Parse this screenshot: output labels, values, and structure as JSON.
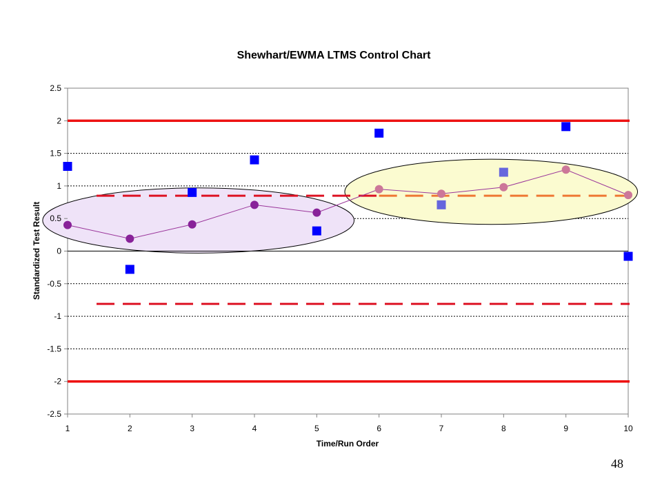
{
  "slide": {
    "page_number": "48"
  },
  "chart_data": {
    "type": "scatter",
    "title": "Shewhart/EWMA LTMS Control Chart",
    "xlabel": "Time/Run Order",
    "ylabel": "Standardized Test Result",
    "xlim": [
      1,
      10
    ],
    "ylim": [
      -2.5,
      2.5
    ],
    "x_ticks": [
      "1",
      "2",
      "3",
      "4",
      "5",
      "6",
      "7",
      "8",
      "9",
      "10"
    ],
    "y_ticks": [
      "2.5",
      "2",
      "1.5",
      "1",
      "0.5",
      "0",
      "-0.5",
      "-1",
      "-1.5",
      "-2",
      "-2.5"
    ],
    "grid": "horizontal dotted",
    "legend": "none",
    "series": [
      {
        "kind": "shewhart-points",
        "marker": "square",
        "x": [
          1,
          2,
          3,
          4,
          5,
          6,
          7,
          8,
          9,
          10
        ],
        "y": [
          1.3,
          -0.28,
          0.9,
          1.4,
          0.31,
          1.81,
          0.71,
          1.21,
          1.91,
          -0.08
        ],
        "colors": [
          "#0000ff",
          "#0000ff",
          "#0000ff",
          "#0000ff",
          "#0000ff",
          "#0000ff",
          "#6666dd",
          "#6666dd",
          "#0000ff",
          "#0000ff"
        ]
      },
      {
        "kind": "ewma-line",
        "marker": "circle",
        "x": [
          1,
          2,
          3,
          4,
          5,
          6,
          7,
          8,
          9,
          10
        ],
        "y": [
          0.4,
          0.19,
          0.41,
          0.71,
          0.59,
          0.95,
          0.88,
          0.98,
          1.25,
          0.86
        ],
        "colors": [
          "#882299",
          "#882299",
          "#882299",
          "#882299",
          "#882299",
          "#cc7799",
          "#cc7799",
          "#cc7799",
          "#cc7799",
          "#cc7799"
        ]
      }
    ],
    "reference_lines": [
      {
        "kind": "shewhart-limit",
        "y": 2,
        "style": "solid",
        "color": "#ee1111"
      },
      {
        "kind": "shewhart-limit",
        "y": -2,
        "style": "solid",
        "color": "#ee1111"
      },
      {
        "kind": "ewma-limit",
        "y": 0.85,
        "style": "dashed",
        "color": "#dd1122",
        "x_range": [
          1,
          6
        ]
      },
      {
        "kind": "ewma-limit",
        "y": 0.85,
        "style": "dashed",
        "color": "#ee7733",
        "x_range": [
          6,
          10
        ]
      },
      {
        "kind": "ewma-limit",
        "y": -0.81,
        "style": "dashed",
        "color": "#dd1122",
        "x_range": [
          1,
          10
        ]
      }
    ],
    "highlights": [
      {
        "kind": "ellipse",
        "center": [
          3.1,
          0.47
        ],
        "radii": [
          2.5,
          0.5
        ],
        "fill": "#efe3f8",
        "stroke": "#000000"
      },
      {
        "kind": "ellipse",
        "center": [
          7.8,
          0.91
        ],
        "radii": [
          2.35,
          0.5
        ],
        "fill": "#fbfbd0",
        "stroke": "#000000"
      }
    ]
  }
}
